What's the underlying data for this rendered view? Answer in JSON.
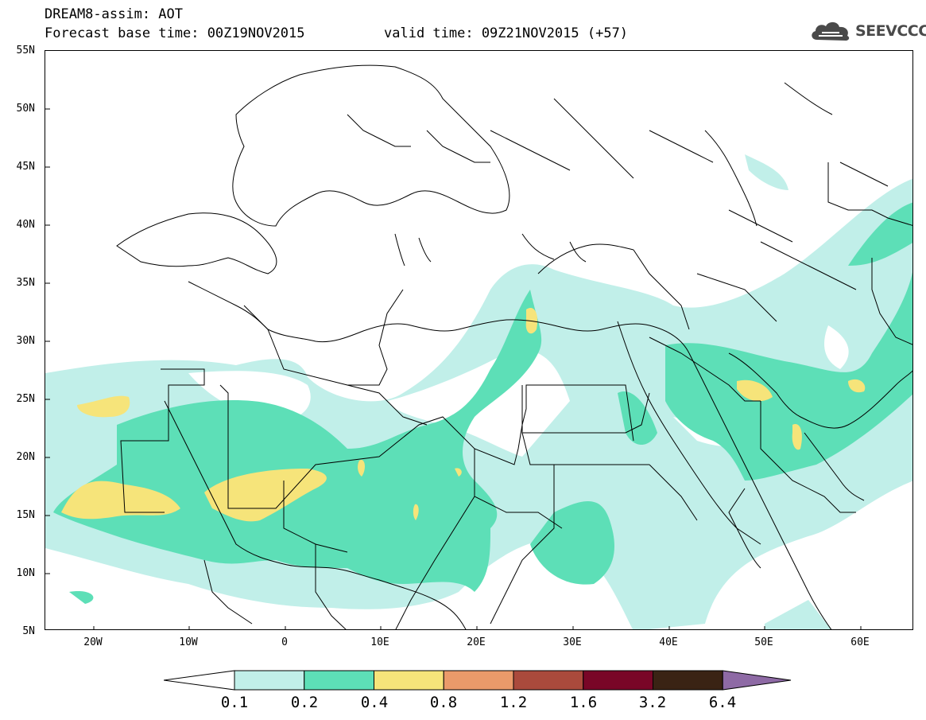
{
  "header": {
    "line1": "DREAM8-assim: AOT",
    "line2": "Forecast base time: 00Z19NOV2015",
    "valid": "valid time: 09Z21NOV2015 (+57)"
  },
  "logo": {
    "text": "SEEVCCC",
    "icon": "cloud-icon"
  },
  "map": {
    "lat_labels": [
      "55N",
      "50N",
      "45N",
      "40N",
      "35N",
      "30N",
      "25N",
      "20N",
      "15N",
      "10N",
      "5N"
    ],
    "lon_labels": [
      "20W",
      "10W",
      "0",
      "10E",
      "20E",
      "30E",
      "40E",
      "50E",
      "60E"
    ]
  },
  "colorbar": {
    "labels": [
      "0.1",
      "0.2",
      "0.4",
      "0.8",
      "1.2",
      "1.6",
      "3.2",
      "6.4"
    ],
    "colors": [
      "#ffffff",
      "#c1efe9",
      "#5ddfb7",
      "#f6e47a",
      "#ea9a6a",
      "#aa4a3c",
      "#790627",
      "#3a2314",
      "#8e6aa5"
    ]
  }
}
